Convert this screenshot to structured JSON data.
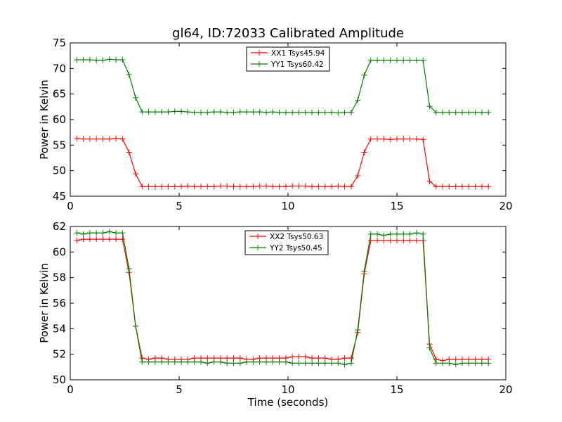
{
  "chart_data": [
    {
      "type": "line",
      "title": "gl64, ID:72033 Calibrated Amplitude",
      "xlabel": "",
      "ylabel": "Power in Kelvin",
      "xlim": [
        0,
        20
      ],
      "ylim": [
        45,
        75
      ],
      "xticks": [
        "0",
        "5",
        "10",
        "15",
        "20"
      ],
      "yticks": [
        "45",
        "50",
        "55",
        "60",
        "65",
        "70",
        "75"
      ],
      "legend_position": "top-center",
      "x": [
        0.3,
        0.6,
        0.9,
        1.2,
        1.5,
        1.8,
        2.1,
        2.4,
        2.7,
        3.0,
        3.3,
        3.6,
        3.9,
        4.2,
        4.5,
        4.8,
        5.1,
        5.4,
        5.7,
        6.0,
        6.3,
        6.6,
        6.9,
        7.2,
        7.5,
        7.8,
        8.1,
        8.4,
        8.7,
        9.0,
        9.3,
        9.6,
        9.9,
        10.2,
        10.5,
        10.8,
        11.1,
        11.4,
        11.7,
        12.0,
        12.3,
        12.6,
        12.9,
        13.2,
        13.5,
        13.8,
        14.1,
        14.4,
        14.7,
        15.0,
        15.3,
        15.6,
        15.9,
        16.2,
        16.5,
        16.8,
        17.1,
        17.4,
        17.7,
        18.0,
        18.3,
        18.6,
        18.9,
        19.2
      ],
      "series": [
        {
          "name": "XX1 Tsys45.94",
          "color": "#ff0000",
          "values": [
            56.3,
            56.2,
            56.2,
            56.2,
            56.2,
            56.2,
            56.3,
            56.2,
            53.6,
            49.4,
            46.9,
            46.9,
            46.9,
            46.9,
            46.9,
            46.9,
            46.9,
            47.0,
            46.9,
            46.9,
            46.9,
            46.9,
            47.0,
            47.0,
            46.9,
            46.9,
            46.9,
            46.9,
            47.0,
            47.0,
            46.9,
            46.9,
            46.9,
            47.0,
            47.0,
            47.0,
            46.9,
            46.9,
            46.9,
            46.9,
            47.0,
            46.9,
            46.9,
            49.0,
            53.6,
            56.2,
            56.2,
            56.2,
            56.1,
            56.2,
            56.2,
            56.2,
            56.2,
            56.1,
            47.9,
            46.9,
            46.9,
            46.9,
            46.9,
            46.9,
            46.9,
            46.9,
            46.9,
            46.9
          ]
        },
        {
          "name": "YY1 Tsys60.42",
          "color": "#008000",
          "values": [
            71.7,
            71.7,
            71.7,
            71.6,
            71.6,
            71.8,
            71.7,
            71.7,
            68.8,
            64.3,
            61.5,
            61.5,
            61.5,
            61.5,
            61.5,
            61.6,
            61.6,
            61.5,
            61.4,
            61.4,
            61.4,
            61.5,
            61.5,
            61.4,
            61.4,
            61.5,
            61.5,
            61.5,
            61.5,
            61.4,
            61.5,
            61.4,
            61.4,
            61.4,
            61.4,
            61.4,
            61.4,
            61.4,
            61.4,
            61.4,
            61.3,
            61.4,
            61.4,
            63.8,
            68.7,
            71.6,
            71.6,
            71.6,
            71.6,
            71.6,
            71.6,
            71.6,
            71.6,
            71.6,
            62.6,
            61.4,
            61.4,
            61.4,
            61.4,
            61.4,
            61.4,
            61.4,
            61.4,
            61.4
          ]
        }
      ]
    },
    {
      "type": "line",
      "title": "",
      "xlabel": "Time (seconds)",
      "ylabel": "Power in Kelvin",
      "xlim": [
        0,
        20
      ],
      "ylim": [
        50,
        62
      ],
      "xticks": [
        "0",
        "5",
        "10",
        "15",
        "20"
      ],
      "yticks": [
        "50",
        "52",
        "54",
        "56",
        "58",
        "60",
        "62"
      ],
      "legend_position": "top-center",
      "x": [
        0.3,
        0.6,
        0.9,
        1.2,
        1.5,
        1.8,
        2.1,
        2.4,
        2.7,
        3.0,
        3.3,
        3.6,
        3.9,
        4.2,
        4.5,
        4.8,
        5.1,
        5.4,
        5.7,
        6.0,
        6.3,
        6.6,
        6.9,
        7.2,
        7.5,
        7.8,
        8.1,
        8.4,
        8.7,
        9.0,
        9.3,
        9.6,
        9.9,
        10.2,
        10.5,
        10.8,
        11.1,
        11.4,
        11.7,
        12.0,
        12.3,
        12.6,
        12.9,
        13.2,
        13.5,
        13.8,
        14.1,
        14.4,
        14.7,
        15.0,
        15.3,
        15.6,
        15.9,
        16.2,
        16.5,
        16.8,
        17.1,
        17.4,
        17.7,
        18.0,
        18.3,
        18.6,
        18.9,
        19.2
      ],
      "series": [
        {
          "name": "XX2 Tsys50.63",
          "color": "#ff0000",
          "values": [
            60.9,
            61.0,
            61.0,
            61.0,
            61.0,
            61.0,
            61.0,
            61.0,
            58.4,
            54.2,
            51.7,
            51.6,
            51.7,
            51.7,
            51.6,
            51.6,
            51.6,
            51.6,
            51.7,
            51.7,
            51.7,
            51.7,
            51.7,
            51.7,
            51.7,
            51.7,
            51.6,
            51.6,
            51.7,
            51.7,
            51.7,
            51.7,
            51.7,
            51.8,
            51.8,
            51.8,
            51.7,
            51.7,
            51.7,
            51.6,
            51.6,
            51.7,
            51.7,
            53.7,
            58.3,
            60.9,
            60.9,
            60.9,
            60.9,
            60.9,
            60.9,
            60.9,
            60.9,
            60.9,
            52.8,
            51.6,
            51.5,
            51.6,
            51.6,
            51.6,
            51.6,
            51.6,
            51.6,
            51.6
          ]
        },
        {
          "name": "YY2 Tsys50.45",
          "color": "#008000",
          "values": [
            61.5,
            61.4,
            61.5,
            61.5,
            61.5,
            61.6,
            61.5,
            61.5,
            58.7,
            54.2,
            51.4,
            51.4,
            51.4,
            51.4,
            51.4,
            51.4,
            51.4,
            51.4,
            51.4,
            51.4,
            51.3,
            51.4,
            51.4,
            51.3,
            51.3,
            51.3,
            51.4,
            51.4,
            51.4,
            51.4,
            51.4,
            51.4,
            51.4,
            51.3,
            51.3,
            51.3,
            51.3,
            51.3,
            51.3,
            51.3,
            51.3,
            51.2,
            51.3,
            53.9,
            58.5,
            61.4,
            61.4,
            61.3,
            61.4,
            61.4,
            61.4,
            61.4,
            61.5,
            61.4,
            52.5,
            51.3,
            51.3,
            51.3,
            51.2,
            51.3,
            51.3,
            51.3,
            51.3,
            51.3
          ]
        }
      ]
    }
  ]
}
